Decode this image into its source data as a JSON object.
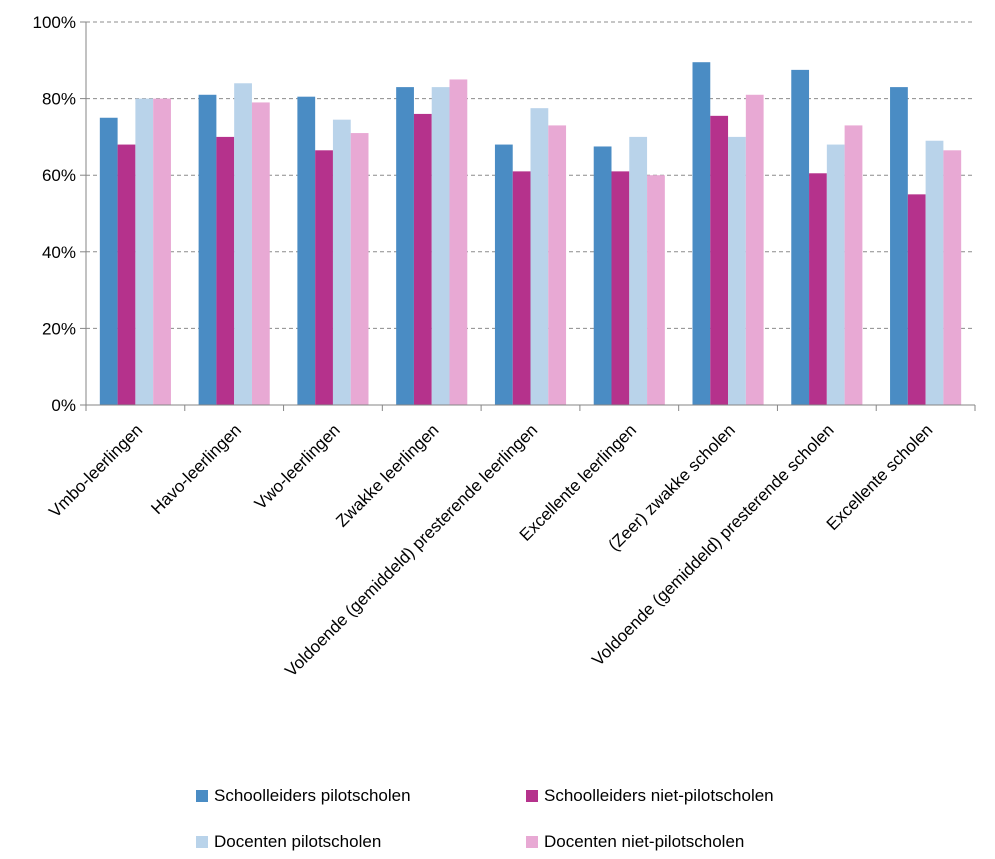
{
  "chart_data": {
    "type": "bar",
    "categories": [
      "Vmbo-leerlingen",
      "Havo-leerlingen",
      "Vwo-leerlingen",
      "Zwakke leerlingen",
      "Voldoende (gemiddeld) presterende leerlingen",
      "Excellente leerlingen",
      "(Zeer) zwakke scholen",
      "Voldoende (gemiddeld) presterende scholen",
      "Excellente scholen"
    ],
    "series": [
      {
        "name": "Schoolleiders pilotscholen",
        "color": "#4a8cc4",
        "values": [
          75,
          81,
          80.5,
          83,
          68,
          67.5,
          89.5,
          87.5,
          83
        ]
      },
      {
        "name": "Schoolleiders niet-pilotscholen",
        "color": "#b5328c",
        "values": [
          68,
          70,
          66.5,
          76,
          61,
          61,
          75.5,
          60.5,
          55
        ]
      },
      {
        "name": "Docenten pilotscholen",
        "color": "#b9d3ea",
        "values": [
          80,
          84,
          74.5,
          83,
          77.5,
          70,
          70,
          68,
          69
        ]
      },
      {
        "name": "Docenten niet-pilotscholen",
        "color": "#e8a9d4",
        "values": [
          80,
          79,
          71,
          85,
          73,
          60,
          81,
          73,
          66.5
        ]
      }
    ],
    "y_ticks": [
      "0%",
      "20%",
      "40%",
      "60%",
      "80%",
      "100%"
    ],
    "ylim": [
      0,
      100
    ],
    "grid": true,
    "legend_position": "bottom"
  }
}
